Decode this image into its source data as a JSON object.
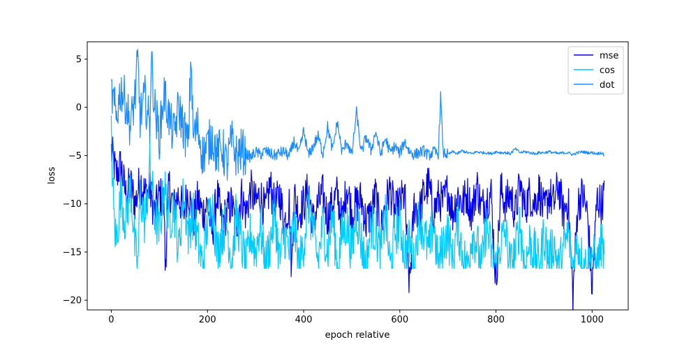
{
  "chart_data": {
    "type": "line",
    "title": "",
    "xlabel": "epoch relative",
    "ylabel": "loss",
    "xlim": [
      -50,
      1075
    ],
    "ylim": [
      -21,
      6.8
    ],
    "x_ticks": [
      0,
      200,
      400,
      600,
      800,
      1000
    ],
    "y_ticks": [
      5,
      0,
      -5,
      -10,
      -15,
      -20
    ],
    "grid": false,
    "legend": "top-right",
    "x_range": [
      0,
      1025
    ],
    "series": [
      {
        "name": "mse",
        "color": "#0000ee",
        "x": [
          0,
          10,
          20,
          30,
          40,
          50,
          60,
          70,
          80,
          90,
          100,
          110,
          112,
          120,
          130,
          140,
          150,
          160,
          170,
          180,
          190,
          200,
          210,
          220,
          230,
          240,
          250,
          260,
          270,
          280,
          290,
          300,
          310,
          320,
          330,
          340,
          350,
          360,
          370,
          375,
          380,
          390,
          400,
          410,
          420,
          430,
          440,
          450,
          460,
          470,
          480,
          490,
          500,
          510,
          520,
          530,
          540,
          550,
          560,
          570,
          580,
          590,
          600,
          610,
          620,
          630,
          640,
          650,
          660,
          670,
          680,
          690,
          700,
          710,
          720,
          730,
          740,
          750,
          760,
          770,
          780,
          790,
          800,
          810,
          820,
          830,
          840,
          850,
          860,
          870,
          880,
          890,
          900,
          910,
          920,
          930,
          940,
          950,
          960,
          970,
          980,
          990,
          1000,
          1010,
          1020,
          1025
        ],
        "values": [
          -4.5,
          -7,
          -6,
          -9,
          -8,
          -10,
          -7.5,
          -9,
          -8.5,
          -11,
          -9,
          -10,
          -16.5,
          -8,
          -10.5,
          -9,
          -11,
          -8.5,
          -12,
          -9.5,
          -11,
          -10,
          -13,
          -9,
          -12,
          -11,
          -10,
          -12.5,
          -9,
          -11,
          -8.5,
          -10,
          -9,
          -11,
          -8,
          -10.5,
          -9,
          -12,
          -10,
          -17,
          -9,
          -11,
          -10,
          -8.5,
          -12,
          -10,
          -9,
          -11.5,
          -10,
          -9,
          -12,
          -8,
          -11,
          -10,
          -9.5,
          -12,
          -11,
          -9,
          -13,
          -10,
          -8.5,
          -11,
          -10,
          -9,
          -18.7,
          -10,
          -11,
          -9,
          -8,
          -11,
          -9.5,
          -10,
          -8.5,
          -11,
          -9,
          -10,
          -9,
          -11,
          -8,
          -10.5,
          -9.5,
          -9,
          -18.4,
          -8.5,
          -10,
          -9,
          -11,
          -8,
          -10.5,
          -9,
          -10,
          -8.5,
          -11,
          -9,
          -10,
          -8,
          -11,
          -9.5,
          -19.6,
          -10,
          -9,
          -11,
          -18.8,
          -9.5,
          -10,
          -9
        ]
      },
      {
        "name": "cos",
        "color": "#00ccff",
        "x": [
          0,
          5,
          10,
          20,
          30,
          40,
          50,
          55,
          60,
          70,
          80,
          90,
          100,
          110,
          120,
          130,
          140,
          150,
          160,
          170,
          180,
          190,
          200,
          210,
          220,
          230,
          240,
          250,
          260,
          270,
          280,
          290,
          300,
          310,
          320,
          330,
          340,
          350,
          360,
          370,
          380,
          390,
          400,
          410,
          420,
          430,
          440,
          450,
          460,
          470,
          480,
          490,
          500,
          510,
          520,
          530,
          540,
          550,
          560,
          570,
          580,
          590,
          600,
          610,
          620,
          630,
          640,
          650,
          660,
          670,
          680,
          690,
          700,
          710,
          720,
          730,
          740,
          750,
          760,
          770,
          780,
          790,
          800,
          810,
          820,
          830,
          840,
          850,
          860,
          870,
          880,
          890,
          900,
          910,
          920,
          930,
          940,
          950,
          960,
          970,
          980,
          990,
          1000,
          1010,
          1020,
          1025
        ],
        "values": [
          -3,
          -11,
          -14,
          -9,
          -12,
          -8,
          -15,
          -16.7,
          -9,
          -12,
          -6,
          -11,
          -13,
          -8,
          -12,
          -10,
          -15,
          -9,
          -13,
          -11,
          -14,
          -16.5,
          -12,
          -10,
          -15,
          -13,
          -12,
          -16,
          -11,
          -14,
          -16.7,
          -13,
          -15,
          -12,
          -16.7,
          -14,
          -11,
          -16,
          -13,
          -15,
          -12,
          -16.7,
          -14,
          -10,
          -13,
          -16,
          -12,
          -15,
          -11,
          -16.7,
          -13,
          -12,
          -15,
          -11,
          -14,
          -16.7,
          -12,
          -13,
          -15,
          -11,
          -16.7,
          -13,
          -12,
          -15,
          -14,
          -16.7,
          -11,
          -13,
          -15,
          -12,
          -16.7,
          -14,
          -13,
          -16,
          -12,
          -15,
          -16.7,
          -13,
          -14,
          -16.7,
          -12,
          -15,
          -16.7,
          -14,
          -13,
          -16.7,
          -15,
          -12,
          -16.7,
          -14,
          -15,
          -16.7,
          -13,
          -16,
          -14,
          -16.7,
          -15,
          -13,
          -16.7,
          -14,
          -16,
          -16.7,
          -15,
          -16.7,
          -14,
          -16.7
        ]
      },
      {
        "name": "dot",
        "color": "#1a8cff",
        "x": [
          0,
          10,
          20,
          30,
          40,
          50,
          55,
          60,
          70,
          80,
          83,
          90,
          100,
          110,
          120,
          130,
          140,
          150,
          160,
          166,
          170,
          180,
          190,
          200,
          210,
          220,
          230,
          240,
          250,
          260,
          270,
          280,
          290,
          300,
          310,
          320,
          330,
          340,
          350,
          360,
          370,
          380,
          390,
          400,
          410,
          420,
          430,
          440,
          450,
          460,
          470,
          480,
          490,
          500,
          510,
          520,
          530,
          540,
          550,
          560,
          570,
          580,
          590,
          600,
          610,
          620,
          630,
          640,
          650,
          660,
          670,
          680,
          685,
          690,
          700,
          710,
          720,
          730,
          740,
          750,
          760,
          770,
          780,
          790,
          800,
          810,
          820,
          830,
          840,
          850,
          860,
          870,
          880,
          890,
          900,
          910,
          920,
          930,
          940,
          950,
          960,
          970,
          980,
          990,
          1000,
          1010,
          1020,
          1025
        ],
        "values": [
          1.5,
          -1,
          2,
          0.5,
          -2,
          1.5,
          4.8,
          -1,
          1,
          -2,
          5.3,
          0,
          -3,
          1.5,
          -1,
          -3,
          0,
          -2,
          -4,
          5.6,
          -3,
          -2,
          -5,
          -4,
          -3,
          -5,
          -4,
          -6,
          -3.5,
          -5,
          -4.5,
          -4.8,
          -5.2,
          -4.6,
          -4.9,
          -4.5,
          -4.8,
          -5,
          -4.7,
          -4.6,
          -5.1,
          -3.5,
          -4.8,
          -2.5,
          -5,
          -4,
          -3,
          -4.8,
          -2,
          -4.5,
          -1.5,
          -4.7,
          -3.5,
          -5,
          -0.5,
          -4.8,
          -3,
          -4.5,
          -2.5,
          -4.9,
          -3.2,
          -4.7,
          -4,
          -4.8,
          -3.5,
          -4.6,
          -4.9,
          -4.7,
          -4.5,
          -5,
          -4.6,
          -4.8,
          1.2,
          -4.7,
          -4.9,
          -4.6,
          -4.8,
          -4.5,
          -4.7,
          -4.8,
          -4.6,
          -4.7,
          -4.7,
          -4.8,
          -4.6,
          -4.7,
          -4.7,
          -4.8,
          -4.3,
          -4.7,
          -4.6,
          -4.7,
          -4.8,
          -4.7,
          -4.7,
          -4.6,
          -4.7,
          -4.8,
          -4.7,
          -4.7,
          -4.9,
          -4.7,
          -4.6,
          -4.7,
          -4.7,
          -4.8,
          -4.7,
          -5
        ]
      }
    ]
  }
}
